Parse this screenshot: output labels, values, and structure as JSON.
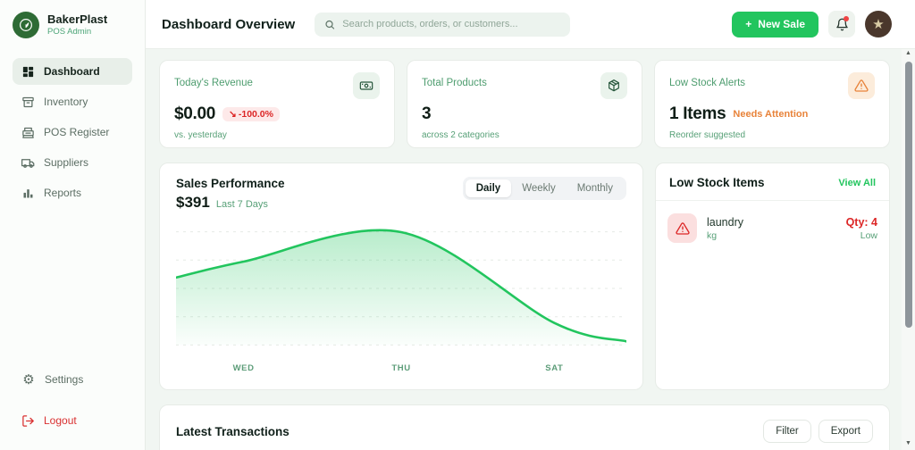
{
  "app": {
    "name": "BakerPlast",
    "subtitle": "POS Admin"
  },
  "sidebar": {
    "items": [
      {
        "label": "Dashboard",
        "icon": "dashboard-grid",
        "active": true
      },
      {
        "label": "Inventory",
        "icon": "archive-box",
        "active": false
      },
      {
        "label": "POS Register",
        "icon": "cash-register",
        "active": false
      },
      {
        "label": "Suppliers",
        "icon": "truck",
        "active": false
      },
      {
        "label": "Reports",
        "icon": "bar-chart",
        "active": false
      }
    ],
    "footer_items": [
      {
        "label": "Settings",
        "icon": "gear",
        "glyph": "⚙"
      },
      {
        "label": "Logout",
        "icon": "logout-arrow"
      }
    ]
  },
  "header": {
    "title": "Dashboard Overview",
    "search_placeholder": "Search products, orders, or customers...",
    "new_sale": {
      "icon": "+",
      "label": "New Sale"
    },
    "notification_icon": "bell",
    "avatar_icon": "star",
    "avatar_glyph": "★"
  },
  "stats": [
    {
      "label": "Today's Revenue",
      "value": "$0.00",
      "trend_icon": "↘",
      "badge": "-100.0%",
      "sub": "vs. yesterday",
      "icon": "banknote"
    },
    {
      "label": "Total Products",
      "value": "3",
      "sub": "across 2 categories",
      "icon": "package"
    },
    {
      "label": "Low Stock Alerts",
      "value": "1 Items",
      "badge": "Needs Attention",
      "sub": "Reorder suggested",
      "icon": "warning-triangle"
    }
  ],
  "sales": {
    "title": "Sales Performance",
    "amount": "$391",
    "period": "Last 7 Days",
    "tabs": [
      "Daily",
      "Weekly",
      "Monthly"
    ],
    "active_tab": "Daily"
  },
  "chart_data": {
    "type": "area",
    "title": "Sales Performance — Last 7 Days",
    "total": 391,
    "total_label": "$391",
    "x_tick_labels": [
      {
        "label": "WED",
        "x_pct": 15
      },
      {
        "label": "THU",
        "x_pct": 50
      },
      {
        "label": "SAT",
        "x_pct": 84
      }
    ],
    "points": [
      {
        "x_pct": 0,
        "y_pct": 55
      },
      {
        "x_pct": 15,
        "y_pct": 68
      },
      {
        "x_pct": 50,
        "y_pct": 92
      },
      {
        "x_pct": 84,
        "y_pct": 18
      },
      {
        "x_pct": 100,
        "y_pct": 3
      }
    ],
    "y_axis_labeled": false,
    "grid": "dashed-horizontal",
    "legend": false,
    "line_color": "#22c55e"
  },
  "low_stock": {
    "title": "Low Stock Items",
    "view_all_label": "View All",
    "items": [
      {
        "name": "laundry",
        "unit": "kg",
        "qty_label": "Qty: 4",
        "status": "Low",
        "icon": "warning-triangle"
      }
    ]
  },
  "transactions": {
    "title": "Latest Transactions",
    "filter_label": "Filter",
    "export_label": "Export"
  },
  "colors": {
    "accent_green": "#22c55e",
    "muted_green_text": "#57a077",
    "danger_red": "#dc2626",
    "warning_orange": "#e8833a",
    "brand_dark_green": "#2e6b35",
    "content_bg": "#f1f6f2"
  }
}
